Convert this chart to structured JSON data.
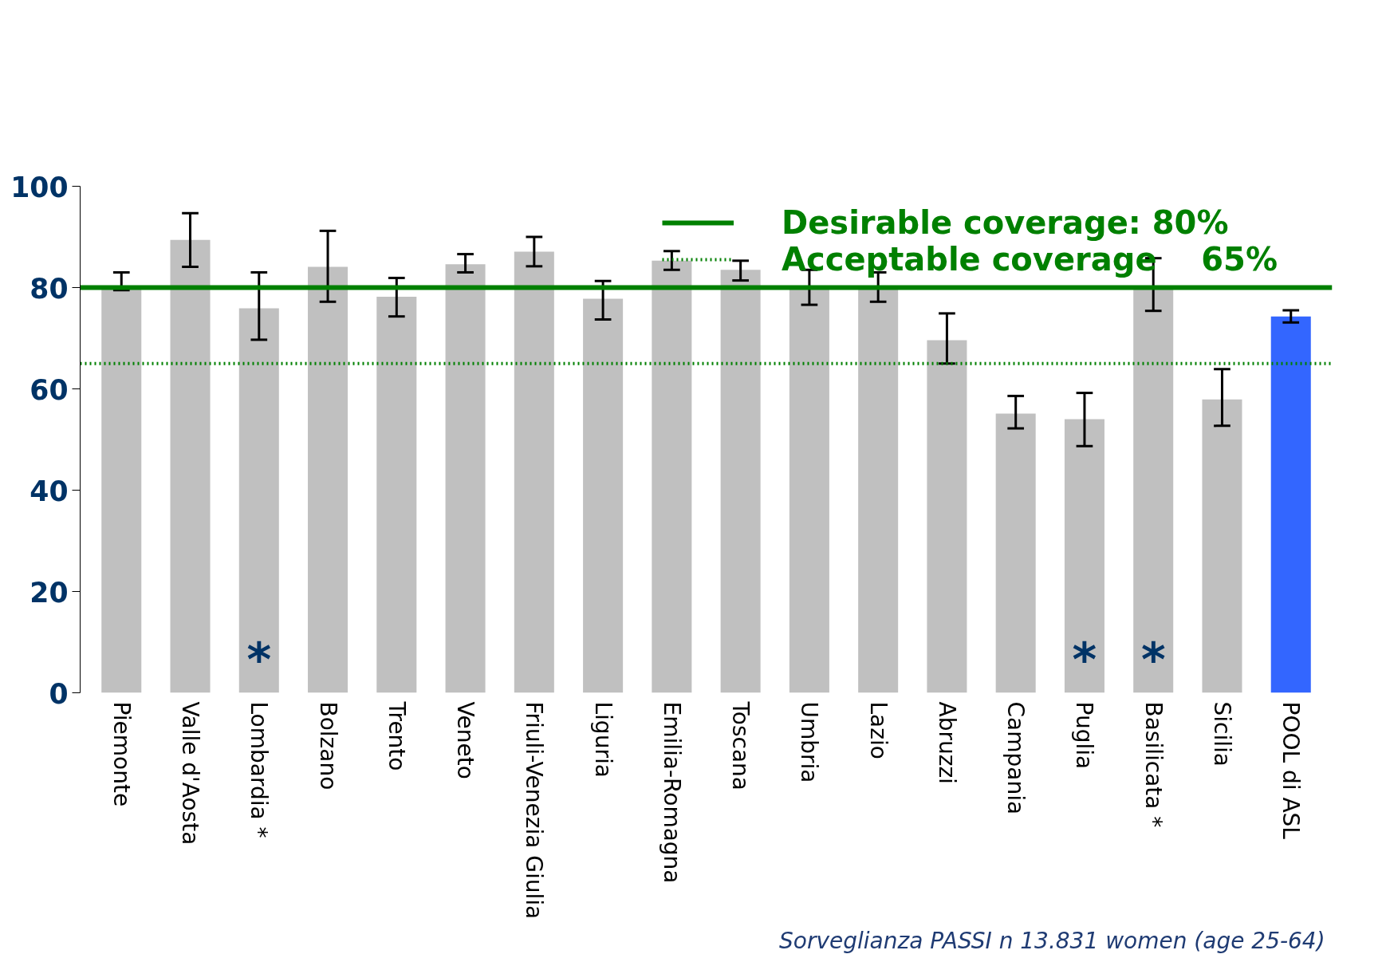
{
  "chart_data": {
    "type": "bar",
    "categories": [
      "Piemonte",
      "Valle d'Aosta",
      "Lombardia *",
      "Bolzano",
      "Trento",
      "Veneto",
      "Friuli-Venezia Giulia",
      "Liguria",
      "Emilia-Romagna",
      "Toscana",
      "Umbria",
      "Lazio",
      "Abruzzi",
      "Campania",
      "Puglia",
      "Basilicata *",
      "Sicilia",
      "POOL di ASL"
    ],
    "values": [
      80.1,
      89.4,
      75.9,
      84.1,
      78.2,
      84.6,
      87.1,
      77.8,
      85.3,
      83.5,
      80.1,
      80.1,
      69.6,
      55.1,
      54.0,
      80.1,
      57.9,
      74.3
    ],
    "colors": [
      "#c0c0c0",
      "#c0c0c0",
      "#c0c0c0",
      "#c0c0c0",
      "#c0c0c0",
      "#c0c0c0",
      "#c0c0c0",
      "#c0c0c0",
      "#c0c0c0",
      "#c0c0c0",
      "#c0c0c0",
      "#c0c0c0",
      "#c0c0c0",
      "#c0c0c0",
      "#c0c0c0",
      "#c0c0c0",
      "#c0c0c0",
      "#3366ff"
    ],
    "errors": [
      [
        79.5,
        83.0
      ],
      [
        84.1,
        94.7
      ],
      [
        69.7,
        83.0
      ],
      [
        77.2,
        91.2
      ],
      [
        74.3,
        81.9
      ],
      [
        83.0,
        86.6
      ],
      [
        84.2,
        90.0
      ],
      [
        73.7,
        81.3
      ],
      [
        83.5,
        87.2
      ],
      [
        81.4,
        85.3
      ],
      [
        76.6,
        83.5
      ],
      [
        77.2,
        83.0
      ],
      [
        65.0,
        74.9
      ],
      [
        52.2,
        58.6
      ],
      [
        48.7,
        59.2
      ],
      [
        75.4,
        85.8
      ],
      [
        52.7,
        63.9
      ],
      [
        73.1,
        75.5
      ]
    ],
    "ylim": [
      0,
      100
    ],
    "yticks": [
      0,
      20,
      40,
      60,
      80,
      100
    ],
    "grid": false,
    "ref_lines": [
      {
        "axis": "y",
        "value": 80,
        "label": "Desirable coverage: 80%",
        "color": "#008000",
        "line_style": "solid"
      },
      {
        "axis": "y",
        "value": 65,
        "label": "Acceptable coverage    65%",
        "color": "#008000",
        "line_style": "dotted"
      }
    ],
    "legend": "top right",
    "value_labels": [
      null,
      null,
      "*",
      null,
      null,
      null,
      null,
      null,
      null,
      null,
      null,
      null,
      null,
      null,
      "*",
      "*",
      null,
      null
    ],
    "annotations": [
      "Sorveglianza PASSI  n 13.831 women (age 25-64)"
    ]
  }
}
